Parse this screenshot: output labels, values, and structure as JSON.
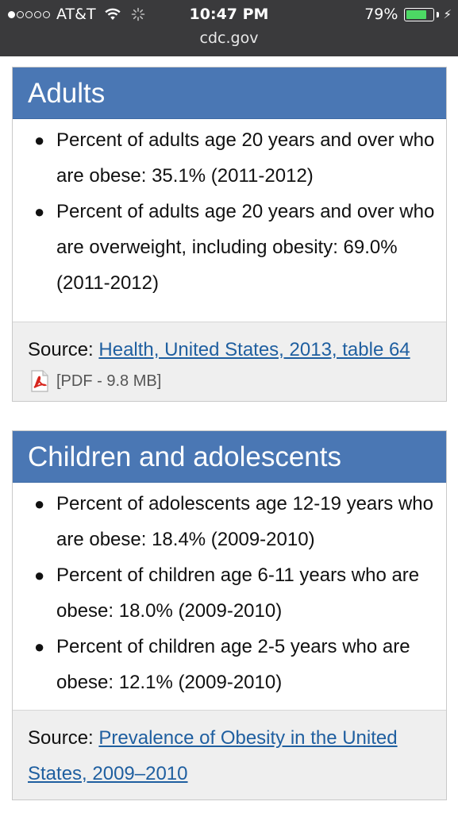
{
  "status_bar": {
    "carrier": "AT&T",
    "time": "10:47 PM",
    "battery_percent": "79%",
    "battery_level": 0.79,
    "signal_bars_filled": 1,
    "signal_bars_total": 5
  },
  "browser": {
    "url": "cdc.gov"
  },
  "adults": {
    "title": "Adults",
    "items": [
      "Percent of adults age 20 years and over who are obese: 35.1% (2011-2012)",
      "Percent of adults age 20 years and over who are overweight, including obesity: 69.0% (2011-2012)"
    ],
    "source_label": "Source: ",
    "source_link": "Health, United States, 2013, table 64",
    "pdf_info": "[PDF - 9.8 MB]"
  },
  "children": {
    "title": "Children and adolescents",
    "items": [
      "Percent of adolescents age 12-19 years who are obese: 18.4% (2009-2010)",
      "Percent of children age 6-11 years who are obese: 18.0% (2009-2010)",
      "Percent of children age 2-5 years who are obese: 12.1% (2009-2010)"
    ],
    "source_label": "Source: ",
    "source_link": "Prevalence of Obesity in the United States, 2009–2010"
  },
  "colors": {
    "header_blue": "#4a77b4",
    "link_blue": "#1f5fa0",
    "battery_green": "#4cd964",
    "status_bar_bg": "#3a3a3c"
  },
  "icons": [
    "wifi-icon",
    "activity-spinner-icon",
    "battery-icon",
    "charging-bolt-icon",
    "pdf-icon"
  ]
}
